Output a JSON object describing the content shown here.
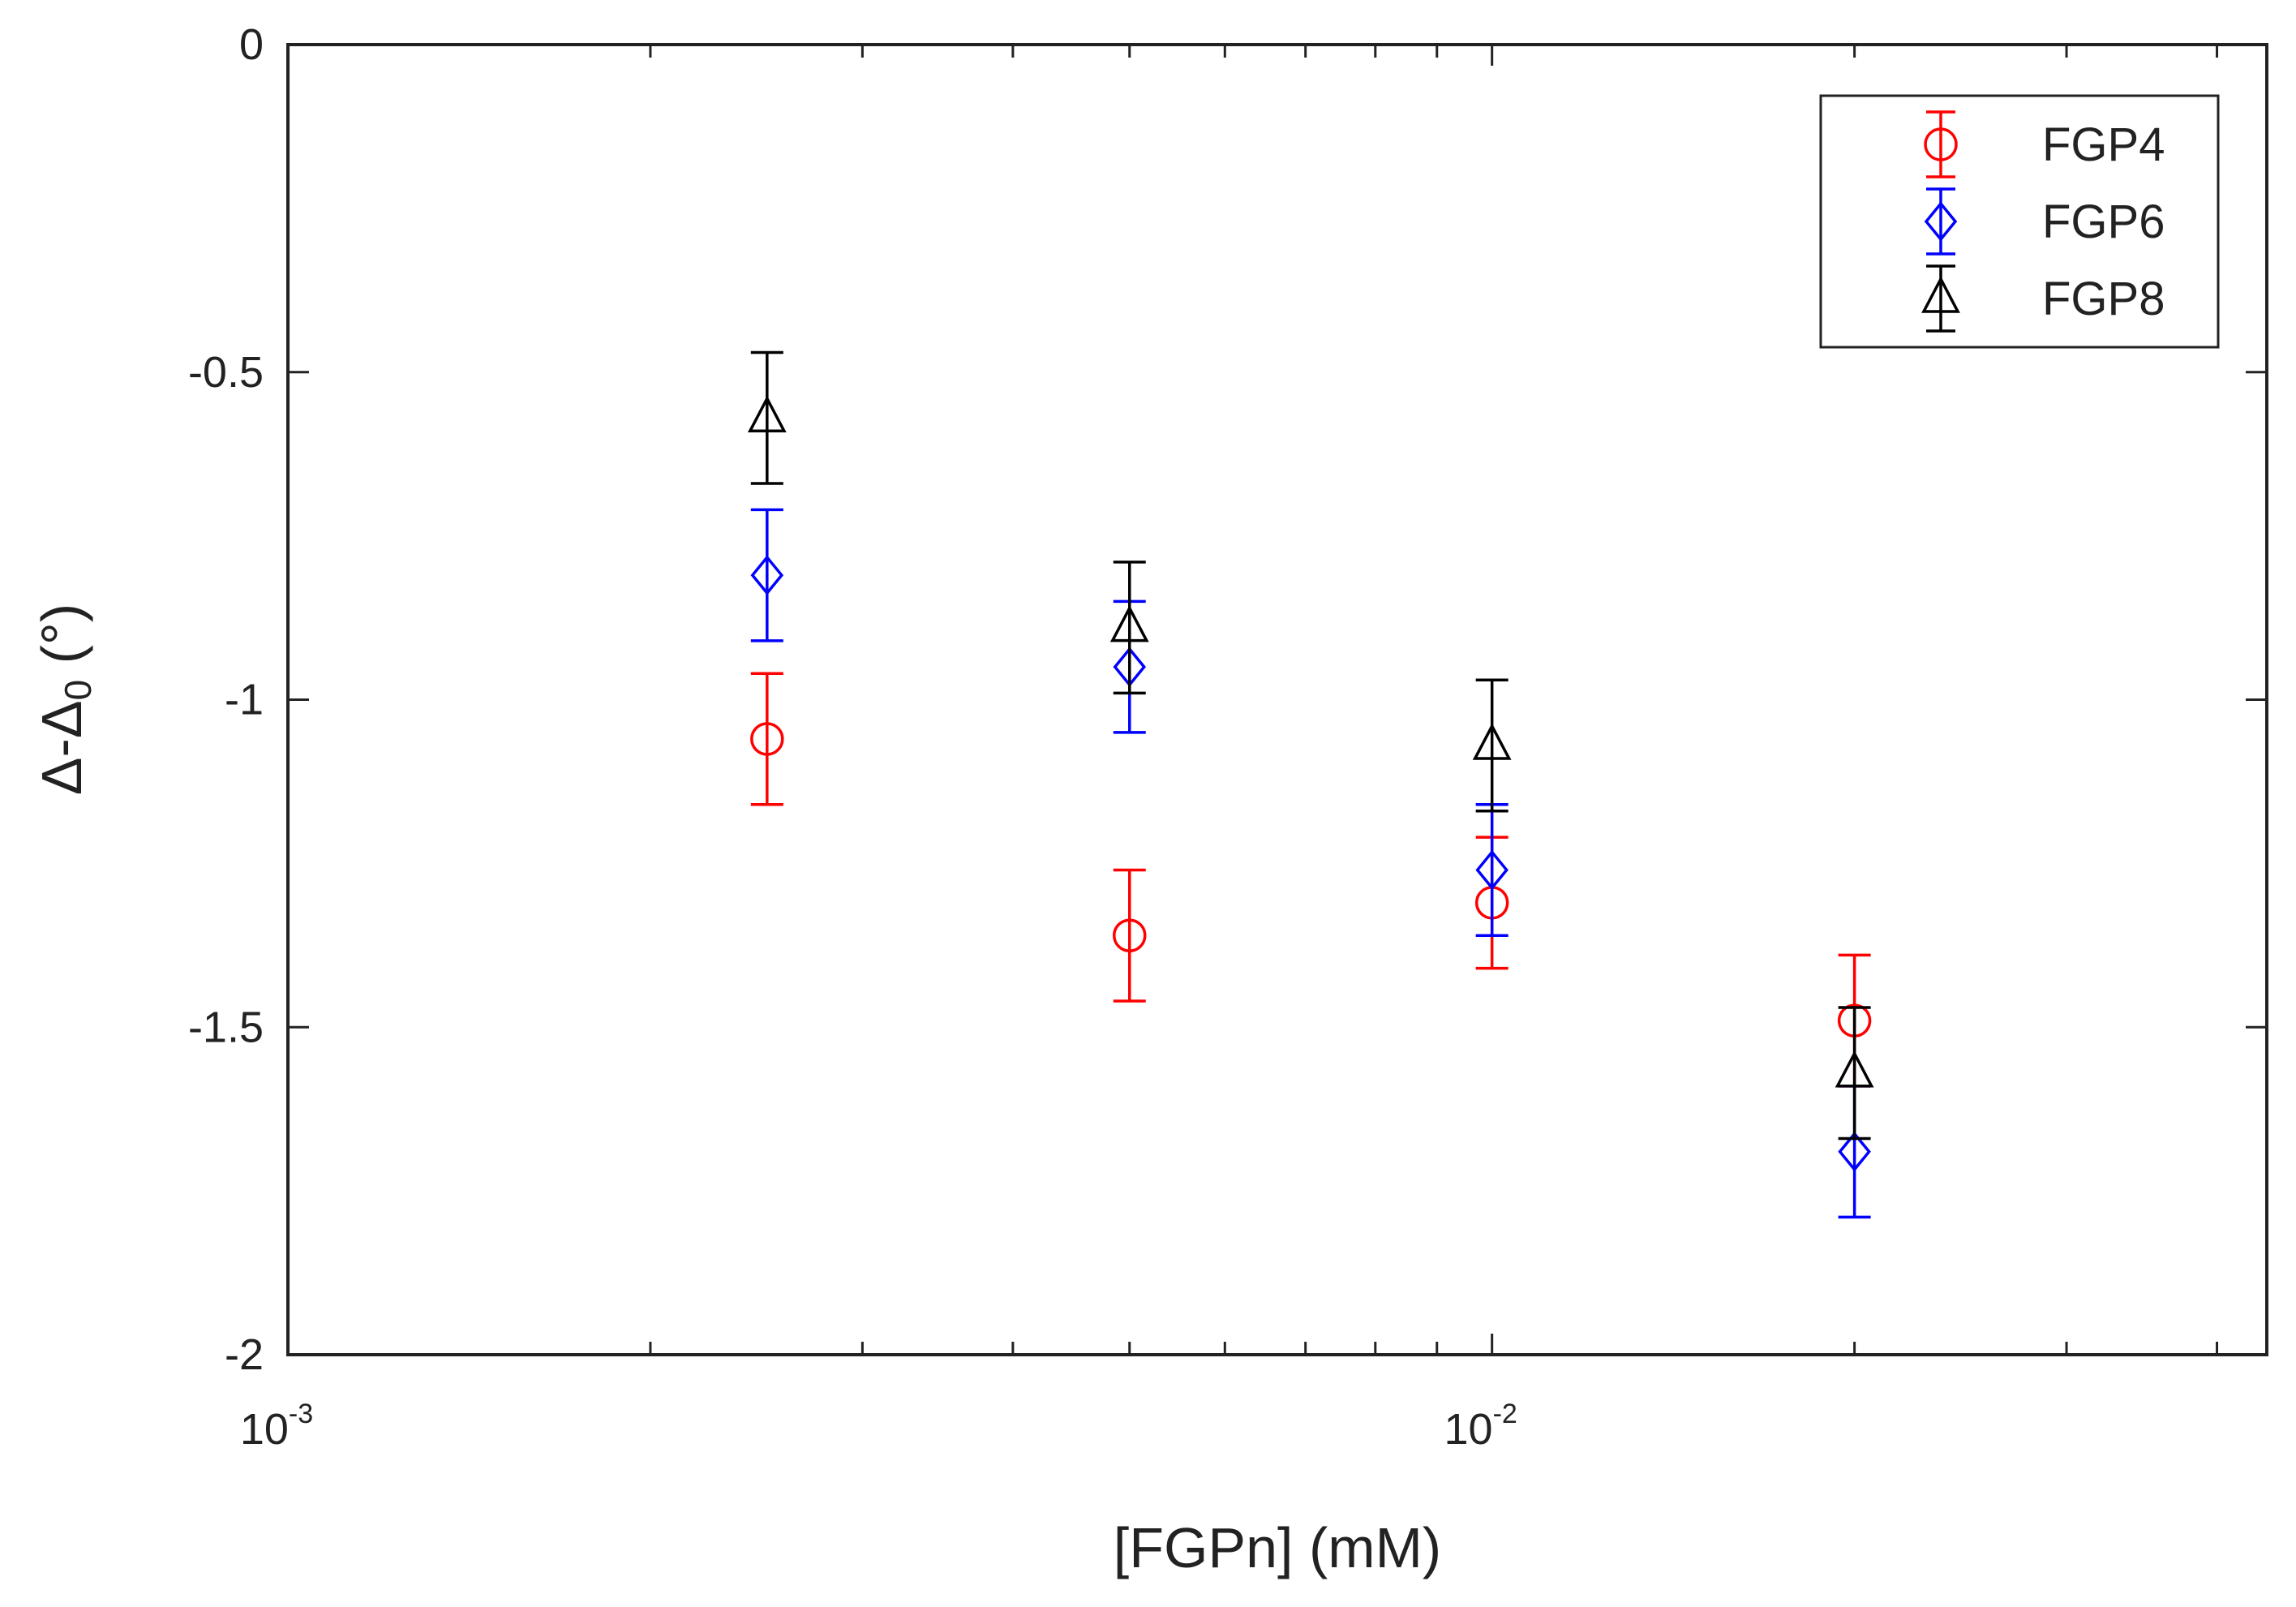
{
  "chart_data": {
    "type": "scatter",
    "title": "",
    "xlabel": "[FGPn] (mM)",
    "ylabel_main": "Δ-Δ",
    "ylabel_sub": "0",
    "ylabel_unit": " (°)",
    "xscale": "log",
    "xlim": [
      0.001,
      0.044
    ],
    "ylim": [
      -2,
      0
    ],
    "yticks": [
      0,
      -0.5,
      -1,
      -1.5,
      -2
    ],
    "ytick_labels": [
      "0",
      "-0.5",
      "-1",
      "-1.5",
      "-2"
    ],
    "xticks_major": [
      {
        "base": "10",
        "exp": "-3",
        "value": 0.001
      },
      {
        "base": "10",
        "exp": "-2",
        "value": 0.01
      }
    ],
    "legend_position": "top-right",
    "series": [
      {
        "name": "FGP4",
        "color": "#ff0000",
        "marker": "circle",
        "points": [
          {
            "x": 0.0025,
            "y": -1.06,
            "err": 0.1
          },
          {
            "x": 0.005,
            "y": -1.36,
            "err": 0.1
          },
          {
            "x": 0.01,
            "y": -1.31,
            "err": 0.1
          },
          {
            "x": 0.02,
            "y": -1.49,
            "err": 0.1
          }
        ]
      },
      {
        "name": "FGP6",
        "color": "#0000ff",
        "marker": "diamond",
        "points": [
          {
            "x": 0.0025,
            "y": -0.81,
            "err": 0.1
          },
          {
            "x": 0.005,
            "y": -0.95,
            "err": 0.1
          },
          {
            "x": 0.01,
            "y": -1.26,
            "err": 0.1
          },
          {
            "x": 0.02,
            "y": -1.69,
            "err": 0.1
          }
        ]
      },
      {
        "name": "FGP8",
        "color": "#000000",
        "marker": "triangle",
        "points": [
          {
            "x": 0.0025,
            "y": -0.57,
            "err": 0.1
          },
          {
            "x": 0.005,
            "y": -0.89,
            "err": 0.1
          },
          {
            "x": 0.01,
            "y": -1.07,
            "err": 0.1
          },
          {
            "x": 0.02,
            "y": -1.57,
            "err": 0.1
          }
        ]
      }
    ]
  }
}
